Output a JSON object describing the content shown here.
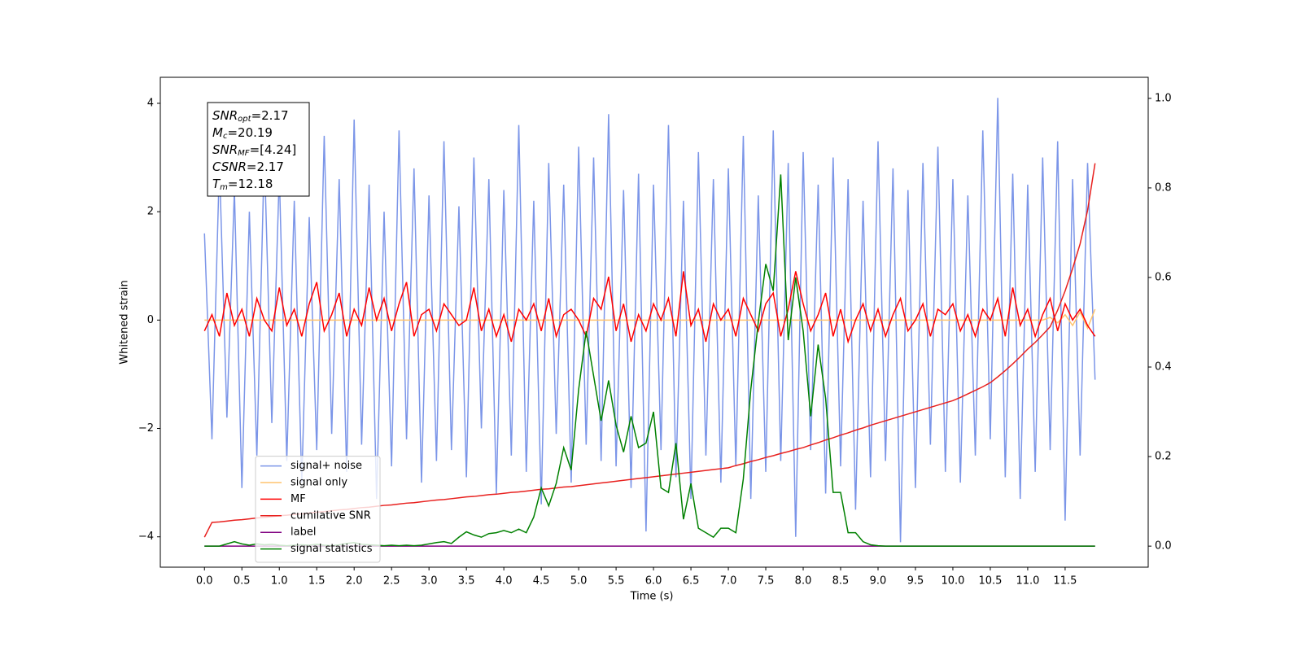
{
  "chart_data": {
    "type": "line",
    "xlabel": "Time (s)",
    "ylabel": "Whitened strain",
    "xlim": [
      -0.59,
      12.61
    ],
    "ylim": [
      -4.56,
      4.48
    ],
    "y2lim": [
      -0.047,
      1.047
    ],
    "xticks": [
      {
        "value": 0,
        "label": "0.0"
      },
      {
        "value": 0.5,
        "label": "0.5"
      },
      {
        "value": 1,
        "label": "1.0"
      },
      {
        "value": 1.5,
        "label": "1.5"
      },
      {
        "value": 2,
        "label": "2.0"
      },
      {
        "value": 2.5,
        "label": "2.5"
      },
      {
        "value": 3,
        "label": "3.0"
      },
      {
        "value": 3.5,
        "label": "3.5"
      },
      {
        "value": 4,
        "label": "4.0"
      },
      {
        "value": 4.5,
        "label": "4.5"
      },
      {
        "value": 5,
        "label": "5.0"
      },
      {
        "value": 5.5,
        "label": "5.5"
      },
      {
        "value": 6,
        "label": "6.0"
      },
      {
        "value": 6.5,
        "label": "6.5"
      },
      {
        "value": 7,
        "label": "7.0"
      },
      {
        "value": 7.5,
        "label": "7.5"
      },
      {
        "value": 8,
        "label": "8.0"
      },
      {
        "value": 8.5,
        "label": "8.5"
      },
      {
        "value": 9,
        "label": "9.0"
      },
      {
        "value": 9.5,
        "label": "9.5"
      },
      {
        "value": 10,
        "label": "10.0"
      },
      {
        "value": 10.5,
        "label": "10.5"
      },
      {
        "value": 11,
        "label": "11.0"
      },
      {
        "value": 11.5,
        "label": "11.5"
      }
    ],
    "yticks": [
      {
        "value": -4,
        "label": "−4"
      },
      {
        "value": -2,
        "label": "−2"
      },
      0,
      2,
      4
    ],
    "y2ticks": [
      {
        "value": 0,
        "label": "0.0"
      },
      {
        "value": 0.2,
        "label": "0.2"
      },
      {
        "value": 0.4,
        "label": "0.4"
      },
      {
        "value": 0.6,
        "label": "0.6"
      },
      {
        "value": 0.8,
        "label": "0.8"
      },
      {
        "value": 1,
        "label": "1.0"
      }
    ],
    "legend": "lower left",
    "textbox": [
      {
        "symbol": "SNR",
        "sub": "opt",
        "text": "=2.17"
      },
      {
        "symbol": "M",
        "sub": "c",
        "text": "=20.19"
      },
      {
        "symbol": "SNR",
        "sub": "MF",
        "text": "=[4.24]"
      },
      {
        "symbol": "CSNR",
        "text": "=2.17"
      },
      {
        "symbol": "T",
        "sub": "m",
        "text": "=12.18"
      }
    ],
    "x": [
      0,
      0.1,
      0.2,
      0.3,
      0.4,
      0.5,
      0.6,
      0.7,
      0.8,
      0.9,
      1,
      1.1,
      1.2,
      1.3,
      1.4,
      1.5,
      1.6,
      1.7,
      1.8,
      1.9,
      2,
      2.1,
      2.2,
      2.3,
      2.4,
      2.5,
      2.6,
      2.7,
      2.8,
      2.9,
      3,
      3.1,
      3.2,
      3.3,
      3.4,
      3.5,
      3.6,
      3.7,
      3.8,
      3.9,
      4,
      4.1,
      4.2,
      4.3,
      4.4,
      4.5,
      4.6,
      4.7,
      4.8,
      4.9,
      5,
      5.1,
      5.2,
      5.3,
      5.4,
      5.5,
      5.6,
      5.7,
      5.8,
      5.9,
      6,
      6.1,
      6.2,
      6.3,
      6.4,
      6.5,
      6.6,
      6.7,
      6.8,
      6.9,
      7,
      7.1,
      7.2,
      7.3,
      7.4,
      7.5,
      7.6,
      7.7,
      7.8,
      7.9,
      8,
      8.1,
      8.2,
      8.3,
      8.4,
      8.5,
      8.6,
      8.7,
      8.8,
      8.9,
      9,
      9.1,
      9.2,
      9.3,
      9.4,
      9.5,
      9.6,
      9.7,
      9.8,
      9.9,
      10,
      10.1,
      10.2,
      10.3,
      10.4,
      10.5,
      10.6,
      10.7,
      10.8,
      10.9,
      11,
      11.1,
      11.2,
      11.3,
      11.4,
      11.5,
      11.6,
      11.7,
      11.8,
      11.9
    ],
    "series": [
      {
        "name": "signal+ noise",
        "color": "#7b95e8",
        "values": [
          1.6,
          -2.2,
          2.9,
          -1.8,
          2.4,
          -3.1,
          2.0,
          -2.5,
          3.1,
          -1.9,
          2.7,
          -2.6,
          2.2,
          -3.0,
          1.9,
          -2.4,
          3.4,
          -2.1,
          2.6,
          -2.8,
          3.7,
          -2.3,
          2.5,
          -3.3,
          2.0,
          -2.7,
          3.5,
          -2.2,
          2.8,
          -3.0,
          2.3,
          -2.6,
          3.3,
          -2.4,
          2.1,
          -2.9,
          3.0,
          -2.0,
          2.6,
          -3.2,
          2.4,
          -2.5,
          3.6,
          -2.8,
          2.2,
          -3.4,
          2.9,
          -2.1,
          2.5,
          -3.0,
          3.2,
          -2.3,
          3.0,
          -2.6,
          3.8,
          -2.7,
          2.4,
          -3.1,
          2.7,
          -3.9,
          2.5,
          -2.4,
          3.6,
          -2.9,
          2.2,
          -3.3,
          3.1,
          -2.5,
          2.6,
          -3.0,
          2.8,
          -2.7,
          3.4,
          -3.3,
          2.3,
          -2.8,
          3.5,
          -2.6,
          2.9,
          -4.0,
          3.1,
          -2.4,
          2.5,
          -3.2,
          3.0,
          -2.7,
          2.6,
          -3.5,
          2.2,
          -2.9,
          3.3,
          -2.6,
          2.8,
          -4.1,
          2.4,
          -3.1,
          2.9,
          -2.3,
          3.2,
          -2.8,
          2.6,
          -3.0,
          2.3,
          -2.5,
          3.5,
          -2.2,
          4.1,
          -2.9,
          2.7,
          -3.3,
          2.5,
          -2.8,
          3.0,
          -2.4,
          3.3,
          -3.7,
          2.6,
          -2.5,
          2.9,
          -1.1
        ]
      },
      {
        "name": "signal only",
        "color": "#ffc46e",
        "values": [
          0,
          0,
          0,
          0,
          0,
          0,
          0,
          0,
          0,
          0,
          0,
          0,
          0,
          0,
          0,
          0,
          0,
          0,
          0,
          0,
          0,
          0,
          0,
          0,
          0,
          0,
          0,
          0,
          0,
          0,
          0,
          0,
          0,
          0,
          0,
          0,
          0,
          0,
          0,
          0,
          0,
          0,
          0,
          0,
          0,
          0,
          0,
          0,
          0,
          0,
          0,
          0,
          0,
          0,
          0,
          0,
          0,
          0,
          0,
          0,
          0,
          0,
          0,
          0,
          0,
          0,
          0,
          0,
          0,
          0,
          0,
          0,
          0,
          0,
          0,
          0,
          0,
          0,
          0,
          0,
          0,
          0,
          0,
          0,
          0,
          0,
          0,
          0,
          0,
          0,
          0,
          0,
          0,
          0,
          0,
          0,
          0,
          0,
          0,
          0,
          0,
          0,
          0,
          0,
          0,
          0,
          0,
          0,
          0,
          0,
          0,
          0,
          0,
          0.05,
          -0.05,
          0.1,
          -0.1,
          0.15,
          -0.15,
          0.2
        ]
      },
      {
        "name": "MF",
        "color": "#ff0000",
        "values": [
          -0.2,
          0.1,
          -0.3,
          0.5,
          -0.1,
          0.2,
          -0.3,
          0.4,
          0.0,
          -0.2,
          0.6,
          -0.1,
          0.2,
          -0.3,
          0.3,
          0.7,
          -0.2,
          0.1,
          0.5,
          -0.3,
          0.2,
          -0.1,
          0.6,
          0.0,
          0.4,
          -0.2,
          0.3,
          0.7,
          -0.3,
          0.1,
          0.2,
          -0.2,
          0.3,
          0.1,
          -0.1,
          0.0,
          0.6,
          -0.2,
          0.2,
          -0.3,
          0.1,
          -0.4,
          0.2,
          0.0,
          0.3,
          -0.2,
          0.4,
          -0.3,
          0.1,
          0.2,
          0.0,
          -0.3,
          0.4,
          0.2,
          0.8,
          -0.2,
          0.3,
          -0.4,
          0.1,
          -0.2,
          0.3,
          0.0,
          0.4,
          -0.3,
          0.9,
          -0.1,
          0.2,
          -0.4,
          0.3,
          0.0,
          0.2,
          -0.3,
          0.4,
          0.1,
          -0.2,
          0.3,
          0.5,
          -0.3,
          0.2,
          0.9,
          0.3,
          -0.2,
          0.1,
          0.5,
          -0.3,
          0.2,
          -0.4,
          0.0,
          0.3,
          -0.2,
          0.2,
          -0.3,
          0.1,
          0.4,
          -0.2,
          0.0,
          0.3,
          -0.3,
          0.2,
          0.1,
          0.3,
          -0.2,
          0.1,
          -0.3,
          0.2,
          0.0,
          0.4,
          -0.3,
          0.6,
          -0.1,
          0.2,
          -0.3,
          0.1,
          0.4,
          -0.2,
          0.3,
          0.0,
          0.2,
          -0.1,
          -0.3
        ]
      },
      {
        "name": "cumilative SNR",
        "color": "#e8201e",
        "axis": "y2",
        "values": [
          0.02,
          0.053,
          0.054,
          0.056,
          0.058,
          0.059,
          0.061,
          0.063,
          0.064,
          0.066,
          0.068,
          0.069,
          0.071,
          0.072,
          0.074,
          0.076,
          0.077,
          0.079,
          0.081,
          0.082,
          0.084,
          0.086,
          0.087,
          0.089,
          0.091,
          0.092,
          0.094,
          0.096,
          0.097,
          0.099,
          0.101,
          0.103,
          0.104,
          0.106,
          0.108,
          0.11,
          0.111,
          0.113,
          0.115,
          0.116,
          0.118,
          0.12,
          0.121,
          0.123,
          0.125,
          0.127,
          0.128,
          0.13,
          0.132,
          0.133,
          0.135,
          0.137,
          0.139,
          0.141,
          0.143,
          0.145,
          0.147,
          0.149,
          0.151,
          0.153,
          0.155,
          0.157,
          0.159,
          0.161,
          0.163,
          0.165,
          0.167,
          0.169,
          0.171,
          0.173,
          0.175,
          0.18,
          0.184,
          0.189,
          0.193,
          0.198,
          0.202,
          0.207,
          0.211,
          0.216,
          0.22,
          0.226,
          0.231,
          0.237,
          0.242,
          0.248,
          0.253,
          0.259,
          0.264,
          0.27,
          0.275,
          0.28,
          0.285,
          0.29,
          0.295,
          0.3,
          0.305,
          0.31,
          0.315,
          0.32,
          0.325,
          0.332,
          0.34,
          0.348,
          0.356,
          0.365,
          0.378,
          0.392,
          0.407,
          0.423,
          0.44,
          0.455,
          0.472,
          0.49,
          0.527,
          0.57,
          0.62,
          0.675,
          0.75,
          0.855
        ]
      },
      {
        "name": "label",
        "color": "#800080",
        "axis": "y2",
        "values": [
          0,
          0,
          0,
          0,
          0,
          0,
          0,
          0,
          0,
          0,
          0,
          0,
          0,
          0,
          0,
          0,
          0,
          0,
          0,
          0,
          0,
          0,
          0,
          0,
          0,
          0,
          0,
          0,
          0,
          0,
          0,
          0,
          0,
          0,
          0,
          0,
          0,
          0,
          0,
          0,
          0,
          0,
          0,
          0,
          0,
          0,
          0,
          0,
          0,
          0,
          0,
          0,
          0,
          0,
          0,
          0,
          0,
          0,
          0,
          0,
          0,
          0,
          0,
          0,
          0,
          0,
          0,
          0,
          0,
          0,
          0,
          0,
          0,
          0,
          0,
          0,
          0,
          0,
          0,
          0,
          0,
          0,
          0,
          0,
          0,
          0,
          0,
          0,
          0,
          0,
          0,
          0,
          0,
          0,
          0,
          0,
          0,
          0,
          0,
          0,
          0,
          0,
          0,
          0,
          0,
          0,
          0,
          0,
          0,
          0,
          0,
          0,
          0,
          0,
          0,
          0,
          0,
          0,
          0,
          0
        ]
      },
      {
        "name": "signal statistics",
        "color": "#008000",
        "axis": "y2",
        "values": [
          0,
          0,
          0,
          0.005,
          0.01,
          0.005,
          0.002,
          0.005,
          0.003,
          0.004,
          0.002,
          0.001,
          0.002,
          0.003,
          0.002,
          0.004,
          0.002,
          0.001,
          0.003,
          0.006,
          0.008,
          0.004,
          0.003,
          0.002,
          0.001,
          0.002,
          0.001,
          0.002,
          0.001,
          0.002,
          0.005,
          0.008,
          0.01,
          0.006,
          0.02,
          0.032,
          0.025,
          0.02,
          0.028,
          0.03,
          0.035,
          0.03,
          0.038,
          0.03,
          0.065,
          0.13,
          0.09,
          0.14,
          0.22,
          0.17,
          0.35,
          0.48,
          0.38,
          0.28,
          0.37,
          0.27,
          0.21,
          0.29,
          0.22,
          0.23,
          0.3,
          0.13,
          0.12,
          0.23,
          0.06,
          0.14,
          0.04,
          0.03,
          0.02,
          0.04,
          0.04,
          0.03,
          0.15,
          0.35,
          0.5,
          0.63,
          0.57,
          0.83,
          0.46,
          0.6,
          0.48,
          0.29,
          0.45,
          0.33,
          0.12,
          0.12,
          0.03,
          0.03,
          0.01,
          0.003,
          0.001,
          0,
          0,
          0,
          0,
          0,
          0,
          0,
          0,
          0,
          0,
          0,
          0,
          0,
          0,
          0,
          0,
          0,
          0,
          0,
          0,
          0,
          0,
          0,
          0,
          0,
          0,
          0,
          0,
          0
        ]
      }
    ]
  }
}
